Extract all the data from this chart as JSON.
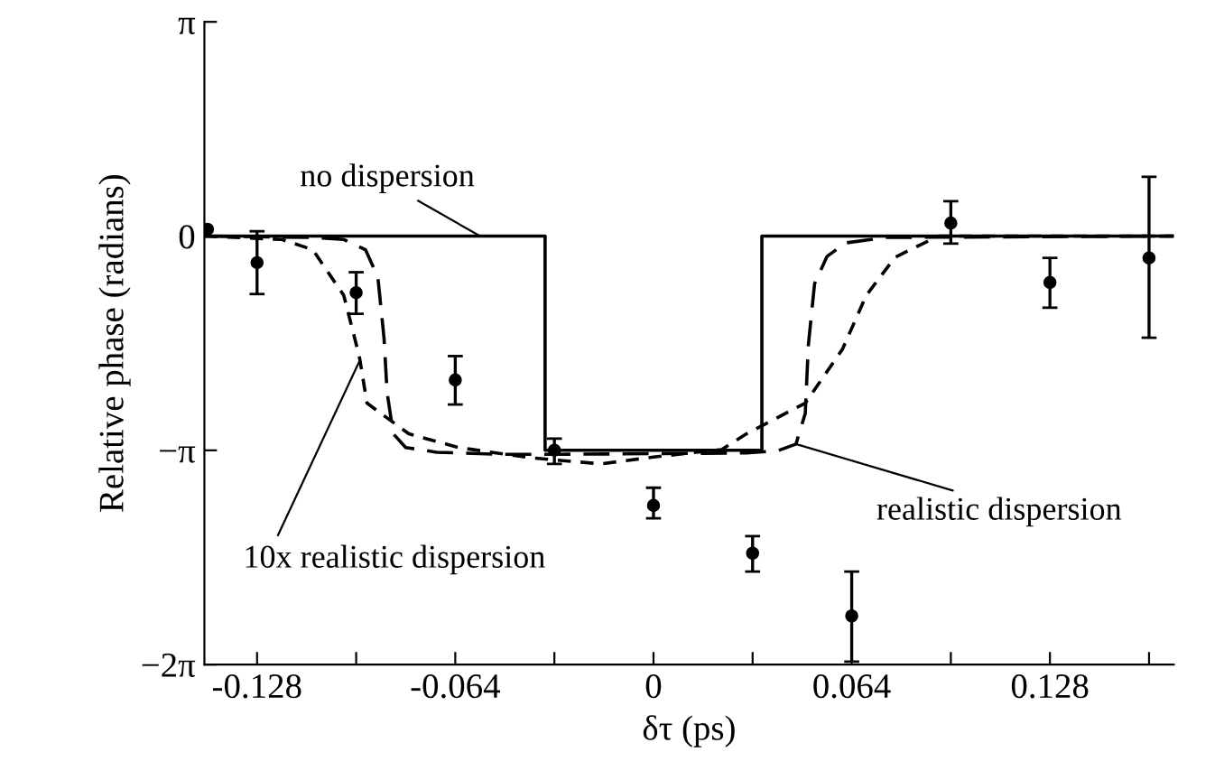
{
  "chart_data": {
    "type": "line",
    "xlabel": "δτ (ps)",
    "ylabel": "Relative phase (radians)",
    "xlim": [
      -0.145,
      0.168
    ],
    "xticks": [
      {
        "value": -0.128,
        "label": "-0.128"
      },
      {
        "value": -0.096,
        "label": null
      },
      {
        "value": -0.064,
        "label": "-0.064"
      },
      {
        "value": -0.032,
        "label": null
      },
      {
        "value": 0,
        "label": "0"
      },
      {
        "value": 0.032,
        "label": null
      },
      {
        "value": 0.064,
        "label": "0.064"
      },
      {
        "value": 0.096,
        "label": null
      },
      {
        "value": 0.128,
        "label": "0.128"
      },
      {
        "value": 0.16,
        "label": null
      }
    ],
    "ylim": [
      -6.2832,
      3.1416
    ],
    "yticks": [
      {
        "value": 3.1416,
        "label": "π"
      },
      {
        "value": 0,
        "label": "0"
      },
      {
        "value": -3.1416,
        "label": "−π"
      },
      {
        "value": -6.2832,
        "label": "−2π"
      }
    ],
    "grid": false,
    "legend": false,
    "series": [
      {
        "line_style": "solid",
        "color": "#000000",
        "x": [
          -0.145,
          -0.035,
          -0.035,
          0.035,
          0.035,
          0.168
        ],
        "values": [
          0,
          0,
          -3.14,
          -3.14,
          0,
          0
        ]
      },
      {
        "line_style": "dashed",
        "color": "#000000",
        "x": [
          -0.145,
          -0.11,
          -0.1,
          -0.093,
          -0.089,
          -0.087,
          -0.086,
          -0.084,
          -0.08,
          -0.07,
          -0.05,
          -0.03,
          0,
          0.03,
          0.04,
          0.046,
          0.049,
          0.05,
          0.052,
          0.056,
          0.062,
          0.075,
          0.168
        ],
        "values": [
          0,
          -0.02,
          -0.05,
          -0.2,
          -0.6,
          -1.5,
          -2.3,
          -2.9,
          -3.1,
          -3.17,
          -3.2,
          -3.2,
          -3.19,
          -3.18,
          -3.15,
          -3.05,
          -2.6,
          -1.6,
          -0.7,
          -0.3,
          -0.1,
          -0.02,
          0
        ]
      },
      {
        "line_style": "dotted",
        "color": "#000000",
        "x": [
          -0.145,
          -0.12,
          -0.11,
          -0.1,
          -0.095,
          -0.0925,
          -0.079,
          -0.063,
          -0.04,
          -0.017,
          0,
          0.022,
          0.03,
          0.049,
          0.061,
          0.0687,
          0.078,
          0.092,
          0.168
        ],
        "values": [
          0,
          -0.05,
          -0.2,
          -0.87,
          -1.76,
          -2.45,
          -2.9,
          -3.1,
          -3.25,
          -3.34,
          -3.24,
          -3.13,
          -2.9,
          -2.45,
          -1.66,
          -0.87,
          -0.31,
          0,
          0
        ]
      },
      {
        "type": "scatter",
        "marker": "circle",
        "color": "#000000",
        "x": [
          -0.144,
          -0.128,
          -0.096,
          -0.064,
          -0.032,
          0,
          0.032,
          0.064,
          0.096,
          0.128,
          0.16
        ],
        "values": [
          0.1,
          -0.39,
          -0.83,
          -2.11,
          -3.14,
          -3.95,
          -4.65,
          -5.57,
          0.19,
          -0.68,
          -0.32
        ],
        "errors": [
          null,
          [
            -0.85,
            0.07
          ],
          [
            -1.14,
            -0.53
          ],
          [
            -2.47,
            -1.76
          ],
          [
            -3.34,
            -2.97
          ],
          [
            -4.14,
            -3.69
          ],
          [
            -4.92,
            -4.4
          ],
          [
            -6.24,
            -4.92
          ],
          [
            -0.11,
            0.51
          ],
          [
            -1.05,
            -0.32
          ],
          [
            -1.49,
            0.87
          ]
        ]
      }
    ],
    "annotations": [
      {
        "text": "no dispersion",
        "x": -0.056,
        "y": 0
      },
      {
        "text": "10x realistic dispersion",
        "x": -0.095,
        "y": -1.84
      },
      {
        "text": "realistic dispersion",
        "x": 0.046,
        "y": -3.05
      }
    ]
  }
}
